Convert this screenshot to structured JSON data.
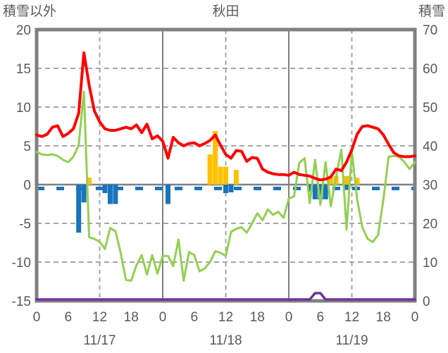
{
  "header": {
    "left_axis_label": "積雪以外",
    "title": "秋田",
    "right_axis_label": "積雪"
  },
  "colors": {
    "red_line": "#FF0000",
    "green_line": "#92D050",
    "orange_bars": "#FFC000",
    "blue_bars": "#1874BC",
    "blue_dashed": "#1874BC",
    "purple_line": "#7030A0",
    "frame": "#808080",
    "zero_line": "#808080",
    "grid_dashed": "#A6A6A6",
    "day_line": "#808080",
    "label_text": "#595959"
  },
  "chart_data": {
    "type": "line",
    "subtype": "hourly weather combo (lines + bars), dual axis",
    "title": "秋田",
    "x_unit": "hour",
    "x_range_hours": [
      0,
      72
    ],
    "grid": "on",
    "left_axis": {
      "label": "積雪以外",
      "min": -15,
      "max": 20,
      "ticks": [
        20,
        15,
        10,
        5,
        0,
        -5,
        -10,
        -15
      ]
    },
    "right_axis": {
      "label": "積雪",
      "min": 0,
      "max": 70,
      "ticks": [
        70,
        60,
        50,
        40,
        30,
        20,
        10,
        0
      ]
    },
    "x_ticks": {
      "hours": [
        0,
        6,
        12,
        18,
        24,
        30,
        36,
        42,
        48,
        54,
        60,
        66,
        72
      ],
      "labels": [
        "0",
        "6",
        "12",
        "18",
        "0",
        "6",
        "12",
        "18",
        "0",
        "6",
        "12",
        "18",
        "0"
      ]
    },
    "date_labels": [
      {
        "label": "11/17",
        "center_hour": 12
      },
      {
        "label": "11/18",
        "center_hour": 36
      },
      {
        "label": "11/19",
        "center_hour": 60
      }
    ],
    "vertical_gridlines": {
      "solid_day_hours": [
        24,
        48
      ],
      "dashed_noon_hours": [
        12,
        36,
        60
      ]
    },
    "horizontal_dashed_values": [
      15,
      10,
      5,
      -5,
      -10
    ],
    "series": [
      {
        "name": "red-line",
        "axis": "left",
        "type": "line",
        "color_key": "red_line",
        "values": [
          6.4,
          6.2,
          6.5,
          7.4,
          7.6,
          6.2,
          6.6,
          7.2,
          9.2,
          17.0,
          12.8,
          9.5,
          8.1,
          7.2,
          7.0,
          7.0,
          7.2,
          7.4,
          7.2,
          7.7,
          6.7,
          7.8,
          5.9,
          6.3,
          5.6,
          3.4,
          6.1,
          5.4,
          5.0,
          5.3,
          5.4,
          5.0,
          5.3,
          5.7,
          6.4,
          5.1,
          3.9,
          3.4,
          4.4,
          4.3,
          3.0,
          3.5,
          3.4,
          2.0,
          1.6,
          1.4,
          1.3,
          1.3,
          1.2,
          1.6,
          1.3,
          1.2,
          1.1,
          0.8,
          0.6,
          0.7,
          1.0,
          2.0,
          1.8,
          2.9,
          4.5,
          6.5,
          7.5,
          7.6,
          7.4,
          7.2,
          6.4,
          5.2,
          4.1,
          3.7,
          3.6,
          3.6,
          3.7
        ]
      },
      {
        "name": "green-line",
        "axis": "left",
        "type": "line",
        "color_key": "green_line",
        "values": [
          4.2,
          3.9,
          3.8,
          3.9,
          3.7,
          3.2,
          2.9,
          3.6,
          5.1,
          12.0,
          -6.8,
          -7.0,
          -7.4,
          -8.3,
          -5.6,
          -6.0,
          -8.8,
          -12.3,
          -12.4,
          -10.4,
          -9.1,
          -11.6,
          -9.1,
          -11.5,
          -9.2,
          -9.2,
          -10.5,
          -7.1,
          -12.4,
          -8.7,
          -9.1,
          -11.2,
          -10.8,
          -10.0,
          -8.6,
          -8.8,
          -9.2,
          -6.1,
          -5.7,
          -5.5,
          -6.2,
          -5.0,
          -3.7,
          -4.6,
          -3.2,
          -3.9,
          -3.5,
          -4.3,
          -1.8,
          -1.5,
          2.8,
          3.4,
          -2.4,
          3.2,
          -2.6,
          2.9,
          -2.8,
          1.0,
          4.5,
          -5.8,
          4.3,
          -1.9,
          -5.5,
          -7.0,
          -7.4,
          -6.5,
          -1.9,
          3.6,
          3.7,
          3.6,
          2.9,
          2.0,
          2.9
        ]
      },
      {
        "name": "orange-bars",
        "axis": "left",
        "type": "bar",
        "color_key": "orange_bars",
        "points": [
          {
            "hour": 10,
            "value": 0.9
          },
          {
            "hour": 33,
            "value": 3.9
          },
          {
            "hour": 34,
            "value": 6.9
          },
          {
            "hour": 35,
            "value": 2.3
          },
          {
            "hour": 36,
            "value": 2.3
          },
          {
            "hour": 38,
            "value": 1.9
          },
          {
            "hour": 56,
            "value": 0.9
          },
          {
            "hour": 57,
            "value": 1.1
          },
          {
            "hour": 59,
            "value": 1.1
          },
          {
            "hour": 61,
            "value": 0.9
          }
        ]
      },
      {
        "name": "blue-bars",
        "axis": "left",
        "type": "bar",
        "color_key": "blue_bars",
        "points": [
          {
            "hour": 8,
            "value": -6.2
          },
          {
            "hour": 9,
            "value": -2.3
          },
          {
            "hour": 13,
            "value": -1.1
          },
          {
            "hour": 14,
            "value": -2.5
          },
          {
            "hour": 15,
            "value": -2.5
          },
          {
            "hour": 25,
            "value": -2.5
          },
          {
            "hour": 36,
            "value": -1.1
          },
          {
            "hour": 37,
            "value": -1.0
          },
          {
            "hour": 52,
            "value": -0.9
          },
          {
            "hour": 53,
            "value": -1.9
          },
          {
            "hour": 54,
            "value": -1.9
          },
          {
            "hour": 55,
            "value": -1.9
          },
          {
            "hour": 59,
            "value": -0.7
          }
        ]
      },
      {
        "name": "blue-dashed-line",
        "axis": "left",
        "type": "dashed-line",
        "color_key": "blue_dashed",
        "constant_value": -0.5
      },
      {
        "name": "purple-line",
        "axis": "right",
        "type": "line",
        "color_key": "purple_line",
        "values": [
          0,
          0,
          0,
          0,
          0,
          0,
          0,
          0,
          0,
          0,
          0,
          0,
          0,
          0,
          0,
          0,
          0,
          0,
          0,
          0,
          0,
          0,
          0,
          0,
          0,
          0,
          0,
          0,
          0,
          0,
          0,
          0,
          0,
          0,
          0,
          0,
          0,
          0,
          0,
          0,
          0,
          0,
          0,
          0,
          0,
          0,
          0,
          0,
          0,
          0,
          0,
          0,
          0,
          2,
          2,
          0,
          0,
          0,
          0,
          0,
          0,
          0,
          0,
          0,
          0,
          0,
          0,
          0,
          0,
          0,
          0,
          0,
          0
        ]
      }
    ]
  }
}
